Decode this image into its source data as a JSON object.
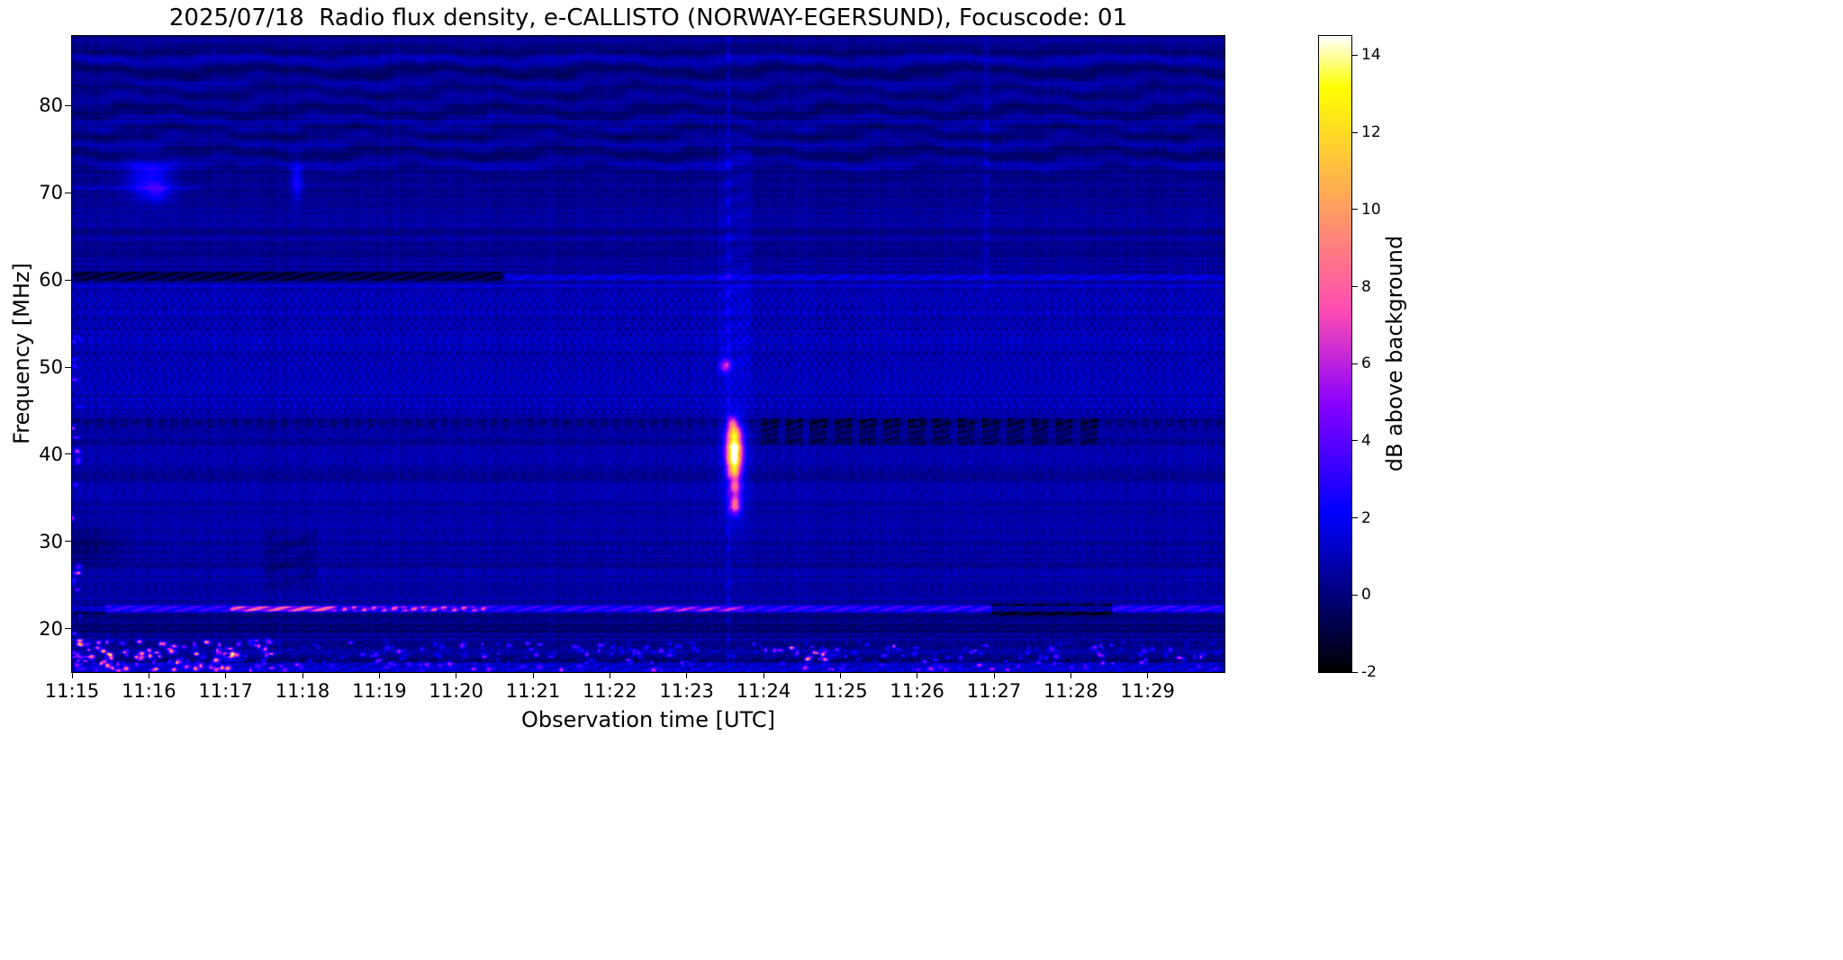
{
  "chart_data": {
    "type": "heatmap",
    "subtype": "radio-spectrogram",
    "title": "2025/07/18  Radio flux density, e-CALLISTO (NORWAY-EGERSUND), Focuscode: 01",
    "xlabel": "Observation time [UTC]",
    "ylabel": "Frequency [MHz]",
    "colorbar_label": "dB above background",
    "colormap": "gnuplot2",
    "x_ticks": [
      "11:15",
      "11:16",
      "11:17",
      "11:18",
      "11:19",
      "11:20",
      "11:21",
      "11:22",
      "11:23",
      "11:24",
      "11:25",
      "11:26",
      "11:27",
      "11:28",
      "11:29"
    ],
    "x_tick_minutes": [
      0,
      1,
      2,
      3,
      4,
      5,
      6,
      7,
      8,
      9,
      10,
      11,
      12,
      13,
      14
    ],
    "x_range_minutes": [
      0,
      15
    ],
    "y_ticks": [
      20,
      30,
      40,
      50,
      60,
      70,
      80
    ],
    "y_range_mhz": [
      15,
      88
    ],
    "colorbar_ticks": [
      -2,
      0,
      2,
      4,
      6,
      8,
      10,
      12,
      14
    ],
    "value_range_db": [
      -2,
      14.5
    ],
    "background_db": 0.6,
    "profile_bands": [
      {
        "f_lo": 15,
        "f_hi": 19.5,
        "dv": -0.15,
        "noise": 1.8
      },
      {
        "f_lo": 19.5,
        "f_hi": 21.7,
        "dv": -0.35,
        "noise": 1.1
      },
      {
        "f_lo": 44,
        "f_hi": 59.5,
        "dv": 0.3,
        "noise": 1.0
      },
      {
        "f_lo": 62,
        "f_hi": 75,
        "dv": -0.15,
        "noise": 0.9
      },
      {
        "f_lo": 75,
        "f_hi": 88,
        "dv": -0.3,
        "noise": 0.8
      }
    ],
    "features": [
      {
        "name": "interference-ripples-top",
        "type": "ripples",
        "f_lo": 71.0,
        "f_hi": 87.5,
        "amp": 0.5
      },
      {
        "name": "rfi-blob-1116-a",
        "type": "blob",
        "t": 1.0,
        "f": 71.8,
        "tw": 0.2,
        "fw": 1.6,
        "dv": 2.2
      },
      {
        "name": "rfi-blob-1116-b",
        "type": "blob",
        "t": 1.1,
        "f": 70.1,
        "tw": 0.12,
        "fw": 0.8,
        "dv": 1.6
      },
      {
        "name": "rfi-line-70mhz-left",
        "type": "hband",
        "f_lo": 70.2,
        "f_hi": 70.8,
        "t0": 0,
        "t1": 1.7,
        "dv": 0.9
      },
      {
        "name": "rfi-blob-1118",
        "type": "blob",
        "t": 2.93,
        "f": 71.4,
        "tw": 0.055,
        "fw": 1.5,
        "dv": 2.2
      },
      {
        "name": "dark-line-60mhz-left",
        "type": "hband",
        "f_lo": 59.8,
        "f_hi": 61.0,
        "t0": 0,
        "t1": 5.62,
        "dv": -1.7
      },
      {
        "name": "bright-line-60mhz-right",
        "type": "hband",
        "f_lo": 59.9,
        "f_hi": 60.7,
        "t0": 5.62,
        "t1": 15,
        "dv": 1.1
      },
      {
        "name": "line-59mhz",
        "type": "hband",
        "f_lo": 59.0,
        "f_hi": 59.5,
        "t0": 0,
        "t1": 15,
        "dv": 0.5
      },
      {
        "name": "texture-band-44-59",
        "type": "texture",
        "f_lo": 44,
        "f_hi": 59.5,
        "t0": 0,
        "t1": 15,
        "amp": 0.45,
        "pt": 0.105,
        "pf": 1.35
      },
      {
        "name": "texture-band-34-43",
        "type": "texture",
        "f_lo": 34,
        "f_hi": 43,
        "t0": 0,
        "t1": 15,
        "amp": 0.22,
        "pt": 0.13,
        "pf": 1.8
      },
      {
        "name": "texture-band-22-33",
        "type": "texture",
        "f_lo": 21.5,
        "f_hi": 33,
        "t0": 0,
        "t1": 15,
        "amp": 0.18,
        "pt": 0.11,
        "pf": 2.2
      },
      {
        "name": "dashed-dark-line-43mhz",
        "type": "hband",
        "f_lo": 42.9,
        "f_hi": 44.2,
        "t0": 0,
        "t1": 15,
        "dv": -0.7,
        "dash_t": 0.16,
        "duty": 0.55
      },
      {
        "name": "dark-band-41-44-after-burst",
        "type": "hband",
        "f_lo": 41.0,
        "f_hi": 44.2,
        "t0": 8.85,
        "t1": 13.4,
        "dv": -1.1,
        "dash_t": 0.32,
        "duty": 0.7
      },
      {
        "name": "line-22mhz",
        "type": "hband",
        "f_lo": 21.8,
        "f_hi": 22.7,
        "t0": 0,
        "t1": 15,
        "dv": 2.3
      },
      {
        "name": "line-22mhz-bright-1117",
        "type": "hband",
        "f_lo": 21.9,
        "f_hi": 22.6,
        "t0": 2.05,
        "t1": 3.45,
        "dv": 4.0
      },
      {
        "name": "line-22mhz-dotted-1118",
        "type": "hband",
        "f_lo": 21.9,
        "f_hi": 22.6,
        "t0": 3.5,
        "t1": 5.4,
        "dv": 3.4,
        "dash_t": 0.13,
        "duty": 0.5
      },
      {
        "name": "line-22mhz-bright-1122",
        "type": "hband",
        "f_lo": 21.9,
        "f_hi": 22.5,
        "t0": 7.5,
        "t1": 8.75,
        "dv": 2.4
      },
      {
        "name": "line-22mhz-dark-left",
        "type": "hband",
        "f_lo": 21.6,
        "f_hi": 22.8,
        "t0": 0,
        "t1": 0.45,
        "dv": -1.9
      },
      {
        "name": "line-22mhz-dark-1127",
        "type": "hband",
        "f_lo": 21.5,
        "f_hi": 22.9,
        "t0": 11.95,
        "t1": 13.55,
        "dv": -2.7
      },
      {
        "name": "dark-band-20mhz",
        "type": "hband",
        "f_lo": 19.4,
        "f_hi": 21.6,
        "t0": 0,
        "t1": 15,
        "dv": -0.4
      },
      {
        "name": "bottom-bright-row",
        "type": "hband",
        "f_lo": 15.0,
        "f_hi": 16.1,
        "t0": 0,
        "t1": 15,
        "dv": 1.1
      },
      {
        "name": "bottom-dark-row",
        "type": "hband",
        "f_lo": 16.1,
        "f_hi": 16.8,
        "t0": 0,
        "t1": 15,
        "dv": -0.9
      },
      {
        "name": "bottom-row-17mhz",
        "type": "hband",
        "f_lo": 16.9,
        "f_hi": 17.6,
        "t0": 0,
        "t1": 15,
        "dv": 0.5
      },
      {
        "name": "dark-patch-30mhz-left",
        "type": "blob",
        "t": 0.2,
        "f": 29.5,
        "tw": 0.3,
        "fw": 1.6,
        "dv": -0.8
      },
      {
        "name": "dark-columns-1117",
        "type": "vband",
        "t0": 2.5,
        "t1": 3.2,
        "f_lo": 24,
        "f_hi": 32,
        "dv": -0.45
      },
      {
        "name": "burst-glow",
        "type": "blob",
        "t": 8.62,
        "f": 39.5,
        "tw": 0.13,
        "fw": 5.0,
        "dv": 1.3
      },
      {
        "name": "burst-seg-43mhz",
        "type": "blob",
        "t": 8.6,
        "f": 43.6,
        "tw": 0.05,
        "fw": 0.55,
        "dv": 5.5
      },
      {
        "name": "burst-seg-42mhz",
        "type": "blob",
        "t": 8.62,
        "f": 42.3,
        "tw": 0.065,
        "fw": 0.7,
        "dv": 10
      },
      {
        "name": "burst-peak-40mhz",
        "type": "blob",
        "t": 8.62,
        "f": 40.7,
        "tw": 0.07,
        "fw": 0.7,
        "dv": 13
      },
      {
        "name": "burst-seg-39mhz",
        "type": "blob",
        "t": 8.62,
        "f": 39.3,
        "tw": 0.065,
        "fw": 0.6,
        "dv": 11
      },
      {
        "name": "burst-seg-38mhz",
        "type": "blob",
        "t": 8.62,
        "f": 38.0,
        "tw": 0.06,
        "fw": 0.6,
        "dv": 9
      },
      {
        "name": "burst-seg-36mhz",
        "type": "blob",
        "t": 8.63,
        "f": 36.3,
        "tw": 0.05,
        "fw": 0.65,
        "dv": 6.5
      },
      {
        "name": "burst-seg-34mhz",
        "type": "blob",
        "t": 8.63,
        "f": 34.2,
        "tw": 0.05,
        "fw": 0.75,
        "dv": 7.5
      },
      {
        "name": "burst-dot-50mhz",
        "type": "blob",
        "t": 8.5,
        "f": 50.2,
        "tw": 0.05,
        "fw": 0.55,
        "dv": 4.5
      },
      {
        "name": "burst-vertical-line",
        "type": "vband",
        "t0": 8.5,
        "t1": 8.58,
        "f_lo": 15,
        "f_hi": 88,
        "dv": 0.9
      },
      {
        "name": "burst-vertical-smear-upper",
        "type": "vband",
        "t0": 8.4,
        "t1": 8.85,
        "f_lo": 48,
        "f_hi": 77,
        "dv": 0.5
      },
      {
        "name": "vertical-line-1127",
        "type": "vband",
        "t0": 11.85,
        "t1": 11.95,
        "f_lo": 58,
        "f_hi": 88,
        "dv": 0.7
      },
      {
        "name": "speckles-bottom-left",
        "type": "speckles",
        "t0": 0,
        "t1": 2.6,
        "f_lo": 15.2,
        "f_hi": 18.8,
        "count": 150,
        "dv_lo": 2,
        "dv_hi": 9
      },
      {
        "name": "speckles-bottom",
        "type": "speckles",
        "t0": 2.6,
        "t1": 15,
        "f_lo": 15.2,
        "f_hi": 18.5,
        "count": 280,
        "dv_lo": 1,
        "dv_hi": 5.5
      },
      {
        "name": "bright-spot-1124-17mhz",
        "type": "speckles",
        "t0": 9.55,
        "t1": 9.8,
        "f_lo": 16.4,
        "f_hi": 17.6,
        "count": 7,
        "dv_lo": 5,
        "dv_hi": 10
      },
      {
        "name": "left-edge-speckles",
        "type": "speckles",
        "t0": 0,
        "t1": 0.1,
        "f_lo": 15,
        "f_hi": 58,
        "count": 28,
        "dv_lo": 2,
        "dv_hi": 6
      }
    ]
  }
}
